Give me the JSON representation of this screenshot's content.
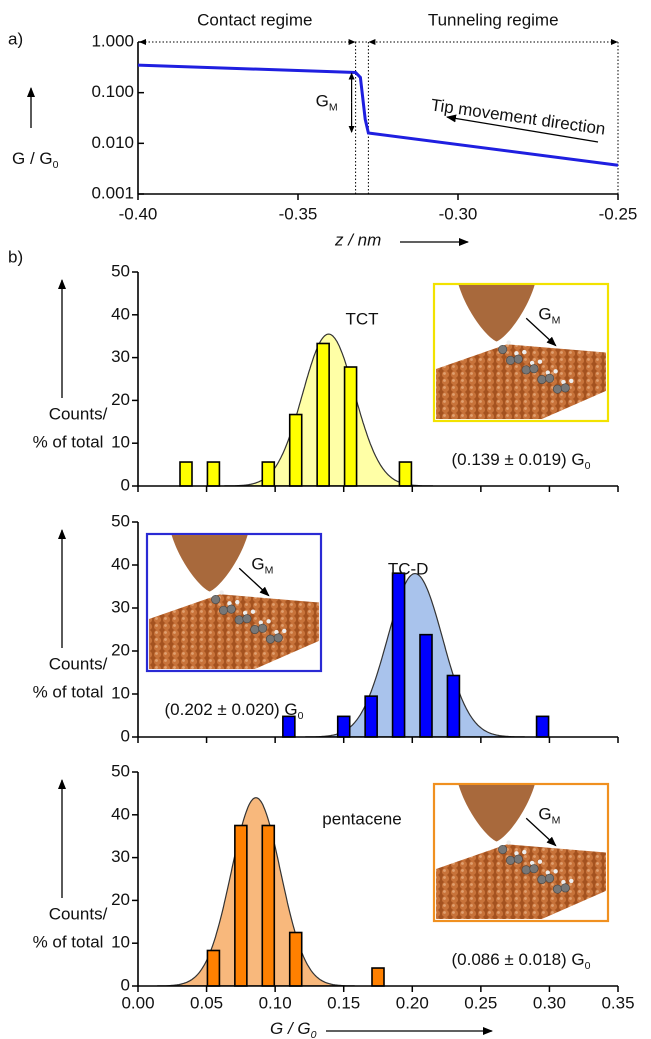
{
  "chart_data": [
    {
      "type": "line",
      "panel_label": "a)",
      "regime_left": "Contact regime",
      "regime_right": "Tunneling regime",
      "gm_label": "G",
      "gm_label_sub": "M",
      "direction_label": "Tip movement direction",
      "x_label": "z / nm",
      "y_label": "G / G",
      "y_label_sub": "0",
      "x": [
        -0.4,
        -0.332,
        -0.3305,
        -0.329,
        -0.328,
        -0.25
      ],
      "values": [
        0.35,
        0.25,
        0.2,
        0.03,
        0.016,
        0.0037
      ],
      "color": "#1f1fe0",
      "log": true,
      "xlim": [
        -0.4,
        -0.25
      ],
      "xticks": [
        {
          "value": -0.4,
          "label": "-0.40"
        },
        {
          "value": -0.35,
          "label": "-0.35"
        },
        {
          "value": -0.3,
          "label": "-0.30"
        },
        {
          "value": -0.25,
          "label": "-0.25"
        }
      ],
      "ylim": [
        0.001,
        1
      ],
      "yticks": [
        {
          "value": 1,
          "label": "1.000"
        },
        {
          "value": 0.1,
          "label": "0.100"
        },
        {
          "value": 0.01,
          "label": "0.010"
        },
        {
          "value": 0.001,
          "label": "0.001"
        }
      ],
      "markers_x": [
        -0.332,
        -0.328
      ]
    },
    {
      "type": "bar",
      "panel_label": "b)",
      "title": "TCT",
      "x": [
        0.035,
        0.055,
        0.095,
        0.115,
        0.135,
        0.155,
        0.195
      ],
      "values": [
        5.6,
        5.6,
        5.6,
        16.7,
        33.3,
        27.8,
        5.6
      ],
      "color": "#ffff00",
      "fit": {
        "mean": 0.139,
        "sd": 0.019,
        "peak": 35.5,
        "color": "#ffffa6",
        "label": "(0.139 ± 0.019) G",
        "label_sub": "0"
      },
      "inset": {
        "label": "G",
        "label_sub": "M",
        "border": "#f2e200",
        "position": "right"
      },
      "y_label": [
        "Counts/",
        "% of total"
      ],
      "xlim": [
        0,
        0.35
      ],
      "xticks": [
        0,
        0.05,
        0.1,
        0.15,
        0.2,
        0.25,
        0.3,
        0.35
      ],
      "show_xtick_labels": false,
      "ylim": [
        0,
        50
      ],
      "yticks": [
        0,
        10,
        20,
        30,
        40,
        50
      ]
    },
    {
      "type": "bar",
      "title": "TC-D",
      "x": [
        0.11,
        0.15,
        0.17,
        0.19,
        0.21,
        0.23,
        0.295
      ],
      "values": [
        4.8,
        4.8,
        9.5,
        38.1,
        23.8,
        14.3,
        4.8
      ],
      "color": "#0000ff",
      "fit": {
        "mean": 0.202,
        "sd": 0.02,
        "peak": 38,
        "color": "#a9c3ec",
        "label": "(0.202 ± 0.020) G",
        "label_sub": "0"
      },
      "inset": {
        "label": "G",
        "label_sub": "M",
        "border": "#2a2ad4",
        "position": "left"
      },
      "y_label": [
        "Counts/",
        "% of total"
      ],
      "xlim": [
        0,
        0.35
      ],
      "xticks": [
        0,
        0.05,
        0.1,
        0.15,
        0.2,
        0.25,
        0.3,
        0.35
      ],
      "show_xtick_labels": false,
      "ylim": [
        0,
        50
      ],
      "yticks": [
        0,
        10,
        20,
        30,
        40,
        50
      ]
    },
    {
      "type": "bar",
      "title": "pentacene",
      "x": [
        0.055,
        0.075,
        0.095,
        0.115,
        0.175
      ],
      "values": [
        8.3,
        37.5,
        37.5,
        12.5,
        4.2
      ],
      "color": "#ff8000",
      "fit": {
        "mean": 0.086,
        "sd": 0.018,
        "peak": 44,
        "color": "#f8b87c",
        "label": "(0.086 ± 0.018) G",
        "label_sub": "0"
      },
      "inset": {
        "label": "G",
        "label_sub": "M",
        "border": "#f09020",
        "position": "right"
      },
      "y_label": [
        "Counts/",
        "% of total"
      ],
      "x_label": "G / G",
      "x_label_sub": "0",
      "xlim": [
        0,
        0.35
      ],
      "xticks": [
        {
          "value": 0,
          "label": "0.00"
        },
        {
          "value": 0.05,
          "label": "0.05"
        },
        {
          "value": 0.1,
          "label": "0.10"
        },
        {
          "value": 0.15,
          "label": "0.15"
        },
        {
          "value": 0.2,
          "label": "0.20"
        },
        {
          "value": 0.25,
          "label": "0.25"
        },
        {
          "value": 0.3,
          "label": "0.30"
        },
        {
          "value": 0.35,
          "label": "0.35"
        }
      ],
      "show_xtick_labels": true,
      "ylim": [
        0,
        50
      ],
      "yticks": [
        0,
        10,
        20,
        30,
        40,
        50
      ]
    }
  ]
}
